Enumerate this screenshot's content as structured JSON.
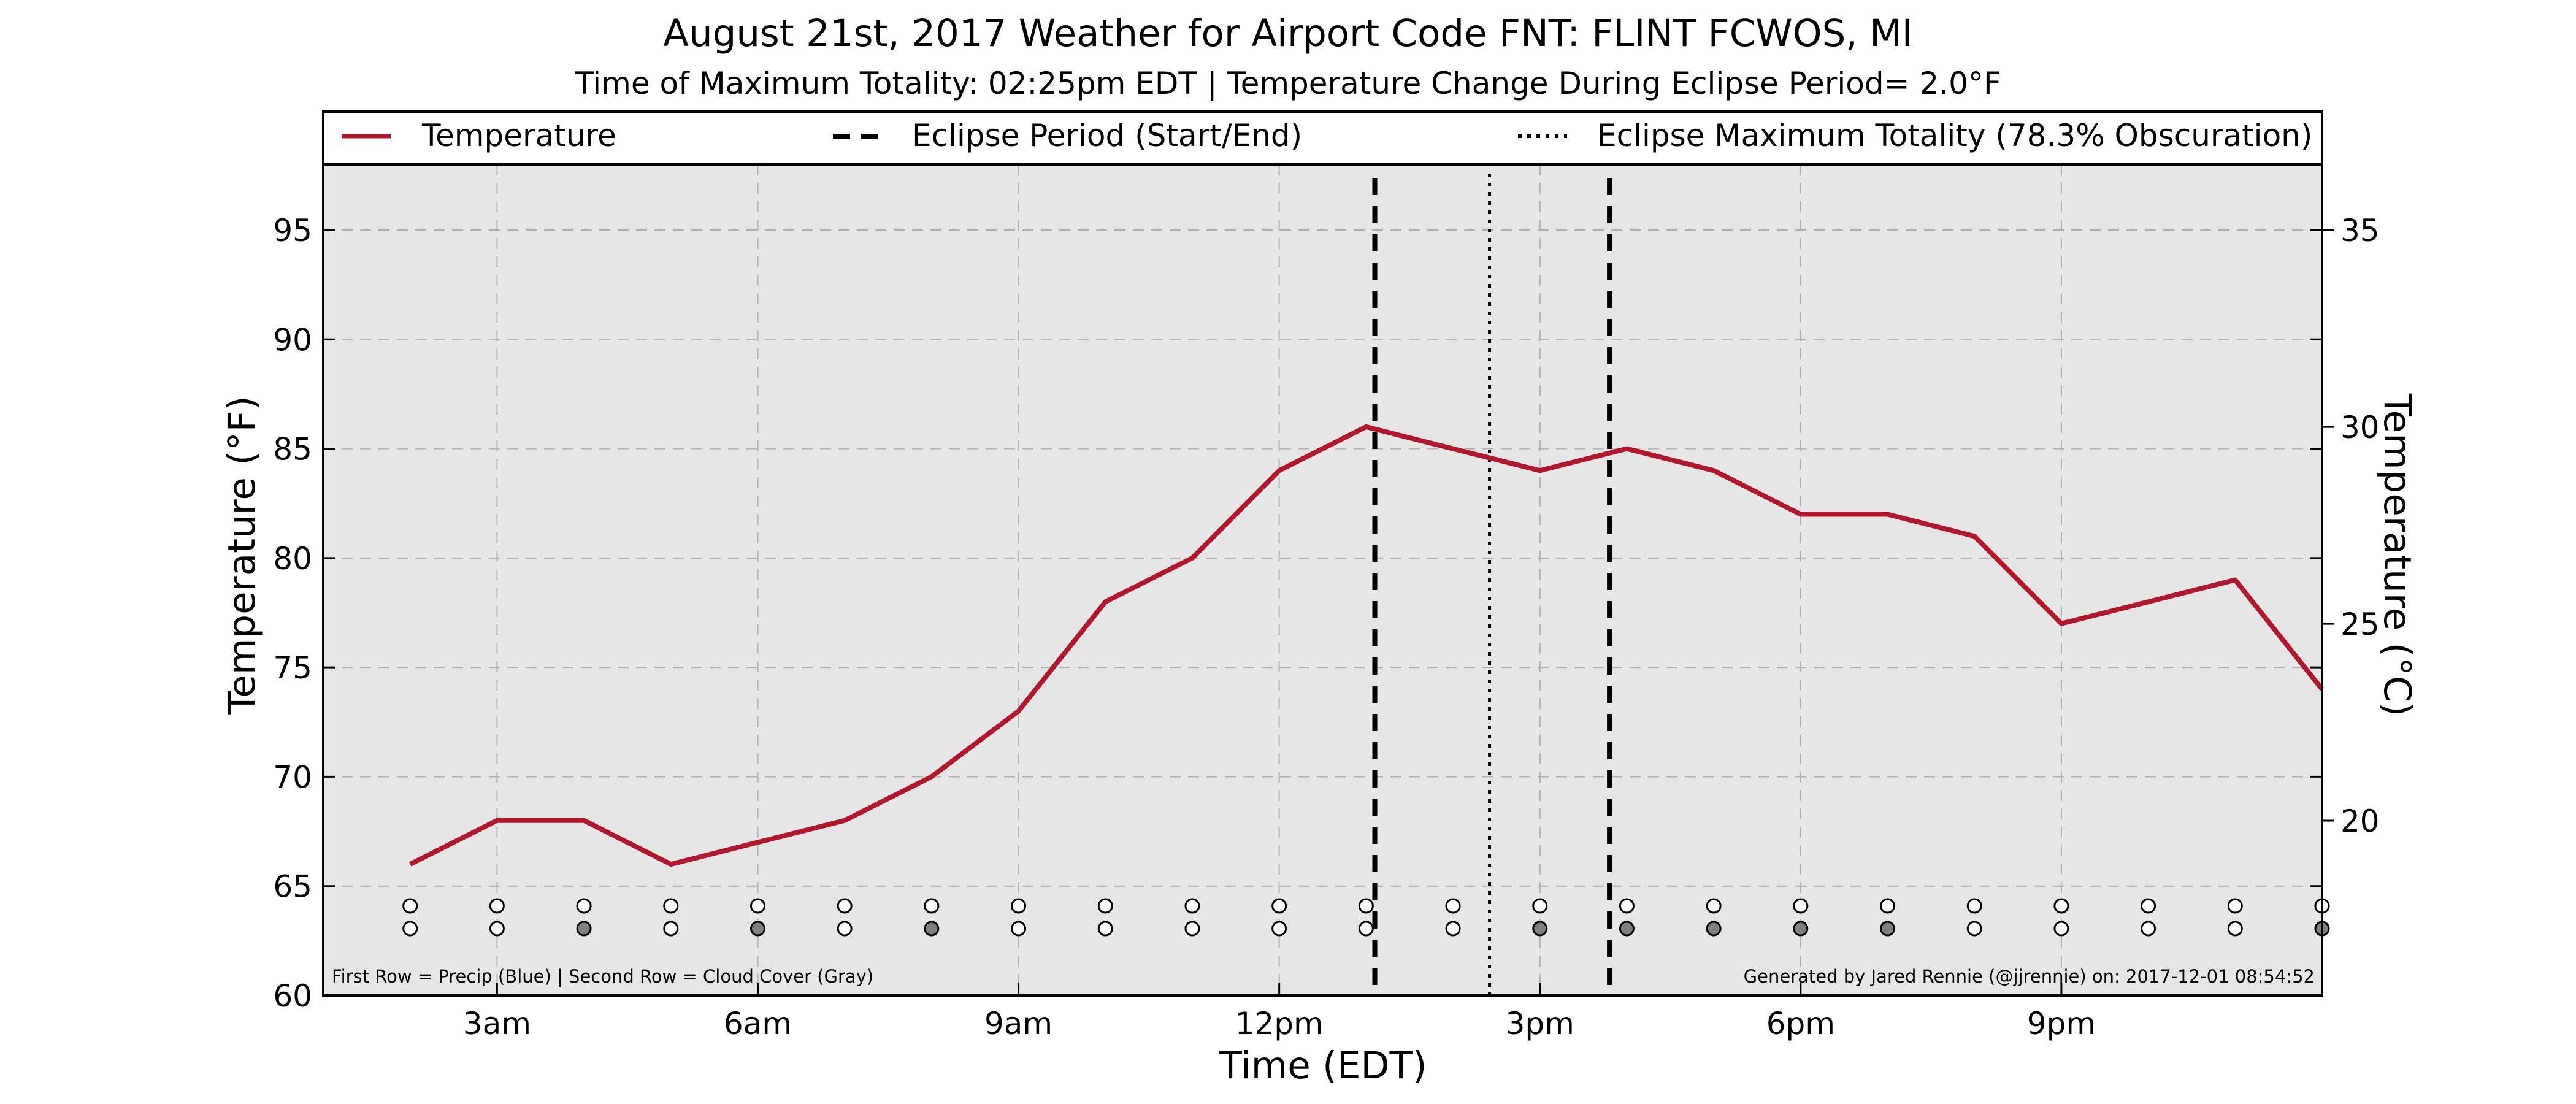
{
  "chart_data": {
    "type": "line",
    "title": "August 21st, 2017 Weather for Airport Code FNT: FLINT FCWOS, MI",
    "subtitle": "Time of Maximum Totality: 02:25pm EDT | Temperature Change During Eclipse Period= 2.0°F",
    "xlabel": "Time (EDT)",
    "ylabel": "Temperature (°F)",
    "ylabel_right": "Temperature (°C)",
    "x_unit": "hours since midnight EDT",
    "xlim": [
      1,
      24
    ],
    "ylim": [
      60,
      98
    ],
    "ylim_right": [
      15.56,
      36.67
    ],
    "grid": true,
    "legend_position": "top",
    "x_ticks": [
      {
        "value": 3,
        "label": "3am"
      },
      {
        "value": 6,
        "label": "6am"
      },
      {
        "value": 9,
        "label": "9am"
      },
      {
        "value": 12,
        "label": "12pm"
      },
      {
        "value": 15,
        "label": "3pm"
      },
      {
        "value": 18,
        "label": "6pm"
      },
      {
        "value": 21,
        "label": "9pm"
      }
    ],
    "y_ticks": [
      60,
      65,
      70,
      75,
      80,
      85,
      90,
      95
    ],
    "y_ticks_right": [
      15,
      20,
      25,
      30,
      35
    ],
    "legend": [
      {
        "label": "Temperature",
        "style": "solid"
      },
      {
        "label": "Eclipse Period (Start/End)",
        "style": "dashed"
      },
      {
        "label": "Eclipse Maximum Totality (78.3% Obscuration)",
        "style": "dotted"
      }
    ],
    "series": [
      {
        "name": "Temperature",
        "color": "#b2182b",
        "x": [
          2,
          3,
          4,
          5,
          6,
          7,
          8,
          9,
          10,
          11,
          12,
          13,
          14,
          15,
          16,
          17,
          18,
          19,
          20,
          21,
          22,
          23,
          24
        ],
        "values": [
          66,
          68,
          68,
          66,
          67,
          68,
          70,
          73,
          78,
          80,
          84,
          86,
          85,
          84,
          85,
          84,
          82,
          82,
          81,
          77,
          78,
          79,
          74
        ]
      }
    ],
    "eclipse_period": [
      13.1,
      15.8
    ],
    "max_totality": 14.42,
    "precip_row": {
      "color": "#1f77b4",
      "x": [
        2,
        3,
        4,
        5,
        6,
        7,
        8,
        9,
        10,
        11,
        12,
        13,
        14,
        15,
        16,
        17,
        18,
        19,
        20,
        21,
        22,
        23,
        24
      ],
      "filled": [
        false,
        false,
        false,
        false,
        false,
        false,
        false,
        false,
        false,
        false,
        false,
        false,
        false,
        false,
        false,
        false,
        false,
        false,
        false,
        false,
        false,
        false,
        false
      ]
    },
    "cloud_row": {
      "color": "#808080",
      "x": [
        2,
        3,
        4,
        5,
        6,
        7,
        8,
        9,
        10,
        11,
        12,
        13,
        14,
        15,
        16,
        17,
        18,
        19,
        20,
        21,
        22,
        23,
        24
      ],
      "filled": [
        false,
        false,
        true,
        false,
        true,
        false,
        true,
        false,
        false,
        false,
        false,
        false,
        false,
        true,
        true,
        true,
        true,
        true,
        false,
        false,
        false,
        false,
        true
      ]
    },
    "footnote_left": "First Row = Precip (Blue) | Second Row = Cloud Cover (Gray)",
    "footnote_right": "Generated by Jared Rennie (@jjrennie) on: 2017-12-01 08:54:52"
  }
}
